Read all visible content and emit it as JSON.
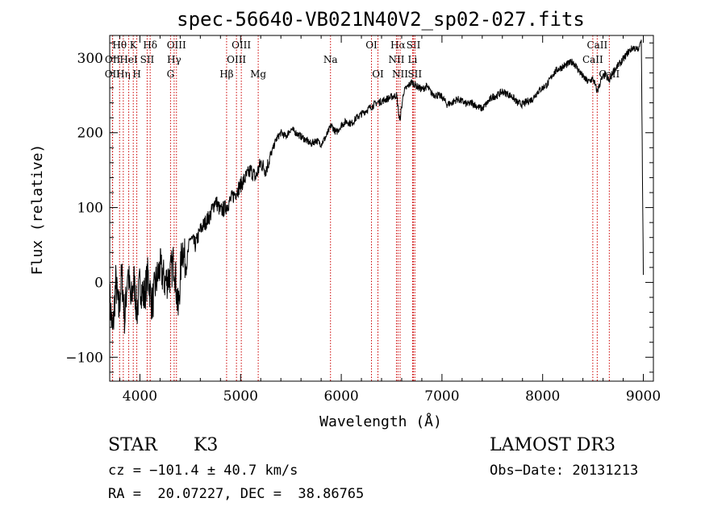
{
  "chart_data": {
    "type": "line",
    "title": "spec-56640-VB021N40V2_sp02-027.fits",
    "xlabel": "Wavelength (Å)",
    "ylabel": "Flux (relative)",
    "xlim": [
      3700,
      9100
    ],
    "ylim": [
      -132,
      330
    ],
    "x_ticks": [
      4000,
      5000,
      6000,
      7000,
      8000,
      9000
    ],
    "y_ticks": [
      -100,
      0,
      100,
      200,
      300
    ],
    "x_tick_labels": [
      "4000",
      "5000",
      "6000",
      "7000",
      "8000",
      "9000"
    ],
    "y_tick_labels": [
      "−100",
      "0",
      "100",
      "200",
      "300"
    ],
    "series": [
      {
        "name": "flux",
        "x": [
          3700,
          3730,
          3760,
          3790,
          3820,
          3850,
          3880,
          3910,
          3940,
          3970,
          4000,
          4040,
          4080,
          4120,
          4160,
          4200,
          4250,
          4300,
          4340,
          4380,
          4420,
          4460,
          4500,
          4550,
          4600,
          4650,
          4700,
          4750,
          4800,
          4850,
          4900,
          4950,
          5000,
          5050,
          5100,
          5150,
          5200,
          5250,
          5300,
          5350,
          5400,
          5450,
          5500,
          5550,
          5600,
          5650,
          5700,
          5750,
          5800,
          5850,
          5900,
          5950,
          6000,
          6050,
          6100,
          6150,
          6200,
          6250,
          6300,
          6350,
          6400,
          6450,
          6500,
          6550,
          6580,
          6620,
          6650,
          6700,
          6750,
          6800,
          6850,
          6900,
          6950,
          7000,
          7050,
          7100,
          7150,
          7200,
          7250,
          7300,
          7350,
          7400,
          7450,
          7500,
          7550,
          7600,
          7650,
          7700,
          7750,
          7800,
          7850,
          7900,
          7950,
          8000,
          8050,
          8100,
          8150,
          8200,
          8250,
          8300,
          8350,
          8400,
          8450,
          8500,
          8542,
          8580,
          8620,
          8662,
          8700,
          8750,
          8800,
          8850,
          8900,
          8950,
          8980,
          9000
        ],
        "y": [
          -20,
          -70,
          0,
          -40,
          10,
          -50,
          20,
          -30,
          5,
          -40,
          0,
          -20,
          10,
          -30,
          0,
          20,
          0,
          10,
          30,
          -40,
          50,
          20,
          60,
          50,
          70,
          80,
          90,
          110,
          95,
          100,
          110,
          120,
          130,
          140,
          150,
          140,
          160,
          150,
          170,
          190,
          200,
          195,
          205,
          200,
          195,
          190,
          185,
          190,
          185,
          195,
          210,
          200,
          210,
          215,
          212,
          220,
          225,
          230,
          235,
          240,
          242,
          245,
          248,
          250,
          215,
          255,
          260,
          268,
          262,
          258,
          262,
          252,
          250,
          248,
          238,
          240,
          245,
          242,
          238,
          240,
          235,
          232,
          240,
          248,
          250,
          255,
          252,
          248,
          240,
          238,
          242,
          245,
          255,
          260,
          265,
          278,
          285,
          288,
          292,
          295,
          285,
          275,
          268,
          272,
          255,
          270,
          278,
          268,
          282,
          290,
          298,
          308,
          314,
          310,
          325,
          10
        ]
      }
    ],
    "line_markers": [
      {
        "label": "Hθ",
        "wavelength": 3798,
        "row": 0
      },
      {
        "label": "OII",
        "wavelength": 3727,
        "row": 2
      },
      {
        "label": "OII",
        "wavelength": 3729,
        "row": 1
      },
      {
        "label": "Hη",
        "wavelength": 3835,
        "row": 2
      },
      {
        "label": "HeI",
        "wavelength": 3889,
        "row": 1
      },
      {
        "label": "K",
        "wavelength": 3934,
        "row": 0
      },
      {
        "label": "H",
        "wavelength": 3969,
        "row": 2
      },
      {
        "label": "SII",
        "wavelength": 4072,
        "row": 1
      },
      {
        "label": "Hδ",
        "wavelength": 4102,
        "row": 0
      },
      {
        "label": "OIII",
        "wavelength": 4363,
        "row": 0
      },
      {
        "label": "Hγ",
        "wavelength": 4340,
        "row": 1
      },
      {
        "label": "G",
        "wavelength": 4304,
        "row": 2
      },
      {
        "label": "Hβ",
        "wavelength": 4861,
        "row": 2
      },
      {
        "label": "OIII",
        "wavelength": 5007,
        "row": 0
      },
      {
        "label": "OIII",
        "wavelength": 4959,
        "row": 1
      },
      {
        "label": "Mg",
        "wavelength": 5175,
        "row": 2
      },
      {
        "label": "Na",
        "wavelength": 5893,
        "row": 1
      },
      {
        "label": "OI",
        "wavelength": 6300,
        "row": 0
      },
      {
        "label": "OI",
        "wavelength": 6364,
        "row": 2
      },
      {
        "label": "Hα",
        "wavelength": 6563,
        "row": 0
      },
      {
        "label": "NII",
        "wavelength": 6548,
        "row": 1
      },
      {
        "label": "NII",
        "wavelength": 6584,
        "row": 2
      },
      {
        "label": "SII",
        "wavelength": 6717,
        "row": 0
      },
      {
        "label": "Li",
        "wavelength": 6708,
        "row": 1
      },
      {
        "label": "SII",
        "wavelength": 6731,
        "row": 2
      },
      {
        "label": "CaII",
        "wavelength": 8542,
        "row": 0
      },
      {
        "label": "CaII",
        "wavelength": 8498,
        "row": 1
      },
      {
        "label": "CaII",
        "wavelength": 8662,
        "row": 2
      }
    ]
  },
  "footer": {
    "object_class": "STAR",
    "subclass": "K3",
    "survey": "LAMOST DR3",
    "cz": "cz = −101.4 ± 40.7 km/s",
    "obs_date": "Obs−Date: 20131213",
    "coords": "RA =  20.07227, DEC =  38.86765"
  },
  "colors": {
    "axis": "#000000",
    "spectrum": "#000000",
    "marker": "#cc0000",
    "background": "#ffffff"
  }
}
